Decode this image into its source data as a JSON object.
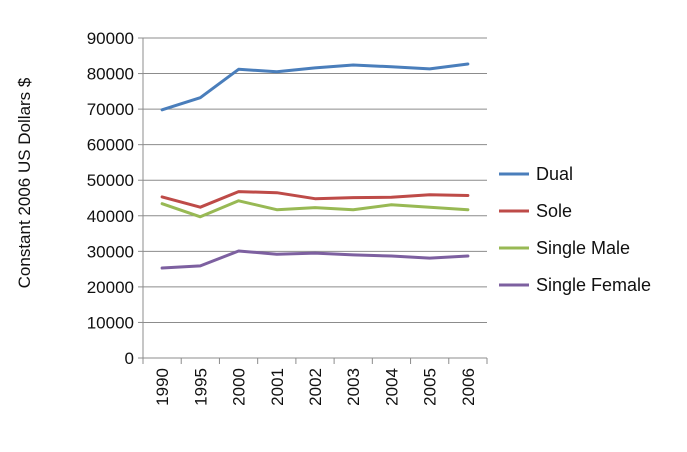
{
  "chart_data": {
    "type": "line",
    "categories": [
      "1990",
      "1995",
      "2000",
      "2001",
      "2002",
      "2003",
      "2004",
      "2005",
      "2006"
    ],
    "ylabel": "Constant 2006 US Dollars $",
    "xlabel": "",
    "ylim": [
      0,
      90000
    ],
    "ytick_step": 10000,
    "grid": true,
    "legend_position": "right",
    "series": [
      {
        "name": "Dual",
        "color": "#4a7ebb",
        "values": [
          69800,
          73200,
          81200,
          80500,
          81600,
          82400,
          81900,
          81300,
          82700
        ]
      },
      {
        "name": "Sole",
        "color": "#be4b48",
        "values": [
          45300,
          42400,
          46800,
          46500,
          44800,
          45100,
          45200,
          45900,
          45700
        ]
      },
      {
        "name": "Single Male",
        "color": "#98b954",
        "values": [
          43400,
          39700,
          44200,
          41700,
          42300,
          41700,
          43100,
          42400,
          41700
        ]
      },
      {
        "name": "Single Female",
        "color": "#7d60a0",
        "values": [
          25300,
          25900,
          30100,
          29200,
          29500,
          29000,
          28700,
          28100,
          28700
        ]
      }
    ]
  }
}
